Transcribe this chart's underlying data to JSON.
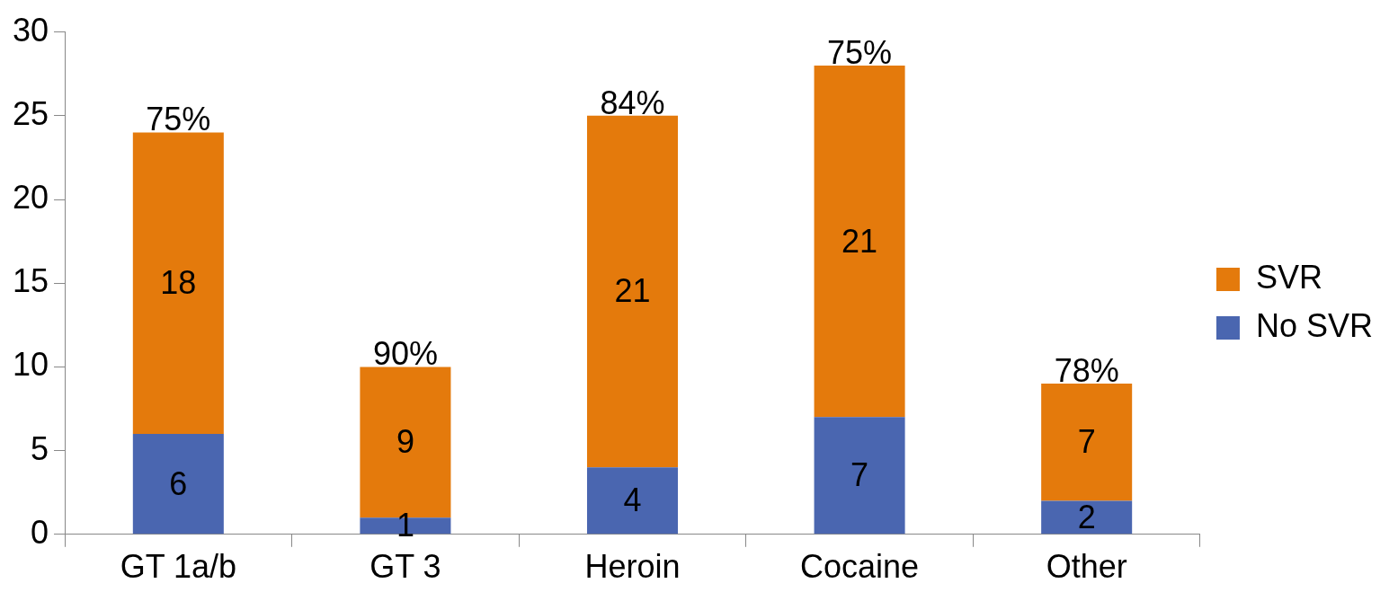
{
  "chart_data": {
    "type": "bar",
    "stacked": true,
    "categories": [
      "GT 1a/b",
      "GT 3",
      "Heroin",
      "Cocaine",
      "Other"
    ],
    "series": [
      {
        "name": "No SVR",
        "color": "#4a66b0",
        "values": [
          6,
          1,
          4,
          7,
          2
        ]
      },
      {
        "name": "SVR",
        "color": "#e47a0c",
        "values": [
          18,
          9,
          21,
          21,
          7
        ]
      }
    ],
    "ylim": [
      0,
      30
    ],
    "yticks": [
      0,
      5,
      10,
      15,
      20,
      25,
      30
    ],
    "grid": false,
    "legend": "right",
    "data_labels": true,
    "annotations": [
      {
        "text": "75%",
        "x": "GT 1a/b",
        "y": 24
      },
      {
        "text": "90%",
        "x": "GT 3",
        "y": 10
      },
      {
        "text": "84%",
        "x": "Heroin",
        "y": 25
      },
      {
        "text": "75%",
        "x": "Cocaine",
        "y": 28
      },
      {
        "text": "78%",
        "x": "Other",
        "y": 9
      }
    ]
  }
}
